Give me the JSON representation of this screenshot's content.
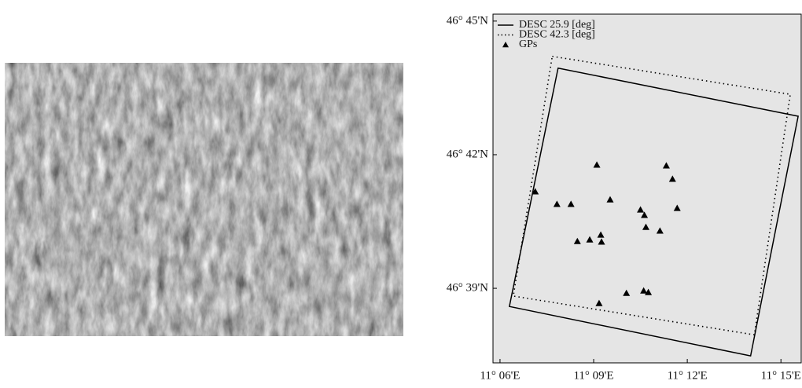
{
  "chart_data": {
    "type": "scatter",
    "xlim": [
      11.09625,
      11.26125
    ],
    "ylim": [
      46.6221,
      46.7526
    ],
    "xticks": [
      {
        "value": 11.1,
        "label": "11° 06'E"
      },
      {
        "value": 11.15,
        "label": "11° 09'E"
      },
      {
        "value": 11.2,
        "label": "11° 12'E"
      },
      {
        "value": 11.25,
        "label": "11° 15'E"
      }
    ],
    "yticks": [
      {
        "value": 46.65,
        "label": "46° 39'N"
      },
      {
        "value": 46.7,
        "label": "46° 42'N"
      },
      {
        "value": 46.75,
        "label": "46° 45'N"
      }
    ],
    "background": "#e5e5e5",
    "legend": "upper left",
    "series": [
      {
        "name": "DESC 25.9 [deg]",
        "color": "#000000",
        "line_style": "solid",
        "x": [
          11.131,
          11.2592,
          11.2338,
          11.105
        ],
        "y": [
          46.7324,
          46.7144,
          46.6247,
          46.6432
        ]
      },
      {
        "name": "DESC 42.3 [deg]",
        "color": "#000000",
        "line_style": "dotted",
        "x": [
          11.1279,
          11.255,
          11.2358,
          11.1071
        ],
        "y": [
          46.7368,
          46.7226,
          46.6326,
          46.6471
        ]
      },
      {
        "name": "GPs",
        "color": "#000000",
        "marker": "triangle",
        "x": [
          11.1188,
          11.1304,
          11.1379,
          11.1413,
          11.1479,
          11.1538,
          11.1542,
          11.1517,
          11.1588,
          11.175,
          11.1771,
          11.1779,
          11.1854,
          11.1888,
          11.1921,
          11.1946,
          11.1675,
          11.1767,
          11.1792,
          11.1529
        ],
        "y": [
          46.6862,
          46.6815,
          46.6815,
          46.6676,
          46.6682,
          46.67,
          46.6674,
          46.6962,
          46.6832,
          46.6794,
          46.6774,
          46.6729,
          46.6715,
          46.6959,
          46.6909,
          46.68,
          46.6482,
          46.6491,
          46.6485,
          46.6444
        ]
      }
    ]
  }
}
